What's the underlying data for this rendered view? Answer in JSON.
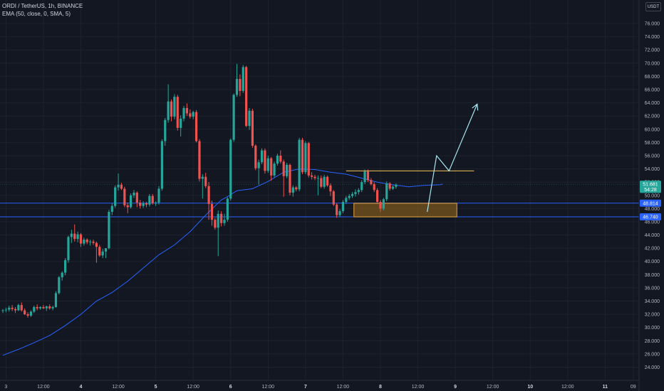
{
  "header": {
    "symbol_line": "ORDI / TetherUS, 1h, BINANCE",
    "indicator_line": "EMA (50, close, 0, SMA, 5)"
  },
  "currency_button": "USDT",
  "colors": {
    "background": "#131722",
    "up": "#26a69a",
    "down": "#ef5350",
    "ema": "#2962ff",
    "support_line": "#2962ff",
    "resistance_line": "#f0c65a",
    "zone_fill": "#9c6b1c",
    "zone_border": "#e8a33a",
    "projection": "#a8e6f0"
  },
  "chart_data": {
    "type": "candlestick",
    "title": "ORDI / TetherUS, 1h, BINANCE",
    "ylim": [
      22.5,
      78.0
    ],
    "y_ticks": [
      "76.000",
      "74.000",
      "72.000",
      "70.000",
      "68.000",
      "66.000",
      "64.000",
      "62.000",
      "60.000",
      "58.000",
      "56.000",
      "54.000",
      "52.000",
      "50.000",
      "48.000",
      "46.000",
      "44.000",
      "42.000",
      "40.000",
      "38.000",
      "36.000",
      "34.000",
      "32.000",
      "30.000",
      "28.000",
      "26.000",
      "24.000"
    ],
    "x_ticks": [
      {
        "label": "3",
        "bar": 1,
        "day": false
      },
      {
        "label": "12:00",
        "bar": 13,
        "day": false
      },
      {
        "label": "4",
        "bar": 25,
        "day": true
      },
      {
        "label": "12:00",
        "bar": 37,
        "day": false
      },
      {
        "label": "5",
        "bar": 49,
        "day": true
      },
      {
        "label": "12:00",
        "bar": 61,
        "day": false
      },
      {
        "label": "6",
        "bar": 73,
        "day": true
      },
      {
        "label": "12:00",
        "bar": 85,
        "day": false
      },
      {
        "label": "7",
        "bar": 97,
        "day": true
      },
      {
        "label": "12:00",
        "bar": 109,
        "day": false
      },
      {
        "label": "8",
        "bar": 121,
        "day": true
      },
      {
        "label": "12:00",
        "bar": 133,
        "day": false
      },
      {
        "label": "9",
        "bar": 145,
        "day": true
      },
      {
        "label": "12:00",
        "bar": 157,
        "day": false
      },
      {
        "label": "10",
        "bar": 169,
        "day": true
      },
      {
        "label": "12:00",
        "bar": 181,
        "day": false
      },
      {
        "label": "11",
        "bar": 193,
        "day": true
      },
      {
        "label": "09",
        "bar": 202,
        "day": false
      }
    ],
    "price_labels": [
      {
        "value": 51.681,
        "text": "51.681",
        "color": "#26a69a"
      },
      {
        "value": 50.9,
        "text": "54:28",
        "color": "#26a69a"
      },
      {
        "value": 48.814,
        "text": "48.814",
        "color": "#2962ff"
      },
      {
        "value": 46.74,
        "text": "46.740",
        "color": "#2962ff"
      }
    ],
    "horizontal_lines": [
      {
        "name": "support-upper",
        "value": 48.814
      },
      {
        "name": "support-lower",
        "value": 46.74
      }
    ],
    "resistance": {
      "value": 53.7,
      "x_from": 110,
      "x_to": 151
    },
    "zone": {
      "x_from": 112.5,
      "x_to": 145.5,
      "y_from": 46.74,
      "y_to": 48.8
    },
    "projection": [
      [
        136,
        47.5
      ],
      [
        139,
        56.0
      ],
      [
        143,
        53.7
      ],
      [
        152,
        63.8
      ]
    ],
    "ema": [
      [
        0,
        25.8
      ],
      [
        5,
        26.7
      ],
      [
        10,
        27.7
      ],
      [
        15,
        28.8
      ],
      [
        20,
        30.3
      ],
      [
        25,
        32.0
      ],
      [
        30,
        34.0
      ],
      [
        35,
        35.3
      ],
      [
        40,
        37.0
      ],
      [
        45,
        39.0
      ],
      [
        50,
        41.0
      ],
      [
        55,
        42.5
      ],
      [
        60,
        44.5
      ],
      [
        65,
        47.0
      ],
      [
        70,
        49.3
      ],
      [
        72,
        49.8
      ],
      [
        75,
        50.7
      ],
      [
        80,
        51.0
      ],
      [
        85,
        52.1
      ],
      [
        90,
        53.5
      ],
      [
        95,
        54.0
      ],
      [
        100,
        53.9
      ],
      [
        105,
        53.5
      ],
      [
        110,
        53.2
      ],
      [
        115,
        52.6
      ],
      [
        120,
        52.0
      ],
      [
        125,
        51.6
      ],
      [
        130,
        51.3
      ],
      [
        135,
        51.5
      ],
      [
        140,
        51.6
      ],
      [
        141,
        51.7
      ]
    ],
    "candles": [
      [
        32.5,
        32.8,
        32.2,
        32.6
      ],
      [
        32.6,
        33.0,
        32.3,
        32.7
      ],
      [
        32.7,
        33.3,
        32.4,
        33.0
      ],
      [
        33.0,
        33.4,
        32.5,
        32.8
      ],
      [
        32.8,
        33.1,
        32.2,
        32.6
      ],
      [
        32.6,
        33.6,
        32.5,
        33.4
      ],
      [
        33.4,
        33.8,
        32.4,
        32.6
      ],
      [
        32.6,
        32.9,
        31.9,
        32.0
      ],
      [
        32.0,
        32.3,
        31.5,
        31.8
      ],
      [
        31.8,
        32.6,
        31.6,
        32.4
      ],
      [
        32.4,
        33.3,
        32.2,
        33.1
      ],
      [
        33.1,
        33.5,
        32.6,
        32.9
      ],
      [
        32.9,
        33.2,
        32.7,
        33.1
      ],
      [
        33.1,
        33.4,
        32.8,
        32.9
      ],
      [
        32.9,
        33.3,
        32.5,
        33.2
      ],
      [
        33.2,
        33.5,
        32.7,
        32.9
      ],
      [
        32.9,
        33.3,
        32.6,
        33.1
      ],
      [
        33.1,
        35.5,
        33.0,
        35.2
      ],
      [
        35.2,
        37.8,
        35.0,
        37.6
      ],
      [
        37.6,
        38.5,
        37.1,
        38.3
      ],
      [
        38.3,
        40.5,
        37.9,
        40.2
      ],
      [
        40.2,
        43.9,
        39.8,
        43.7
      ],
      [
        43.7,
        44.8,
        42.8,
        44.2
      ],
      [
        44.2,
        45.6,
        43.0,
        43.4
      ],
      [
        43.4,
        44.5,
        42.9,
        44.1
      ],
      [
        44.1,
        44.3,
        42.2,
        42.7
      ],
      [
        42.7,
        43.6,
        42.4,
        43.3
      ],
      [
        43.3,
        43.5,
        42.6,
        42.9
      ],
      [
        42.9,
        43.3,
        42.4,
        43.0
      ],
      [
        43.0,
        43.3,
        42.5,
        42.8
      ],
      [
        42.8,
        43.0,
        39.8,
        42.2
      ],
      [
        42.2,
        42.5,
        40.7,
        40.9
      ],
      [
        40.9,
        41.9,
        40.5,
        41.5
      ],
      [
        41.5,
        41.8,
        40.5,
        42.0
      ],
      [
        42.0,
        47.8,
        41.8,
        47.5
      ],
      [
        47.5,
        48.8,
        47.0,
        48.4
      ],
      [
        48.4,
        51.5,
        48.1,
        51.2
      ],
      [
        51.2,
        53.3,
        50.7,
        51.6
      ],
      [
        51.6,
        51.9,
        50.8,
        51.0
      ],
      [
        51.0,
        51.3,
        48.2,
        48.5
      ],
      [
        48.5,
        48.9,
        47.3,
        48.2
      ],
      [
        48.2,
        50.3,
        48.0,
        50.0
      ],
      [
        50.0,
        50.8,
        49.6,
        50.4
      ],
      [
        50.4,
        50.6,
        48.2,
        48.9
      ],
      [
        48.9,
        49.3,
        48.0,
        48.4
      ],
      [
        48.4,
        49.1,
        48.1,
        48.8
      ],
      [
        48.8,
        49.0,
        48.2,
        48.6
      ],
      [
        48.6,
        50.2,
        48.3,
        49.9
      ],
      [
        49.9,
        50.2,
        48.6,
        48.8
      ],
      [
        48.8,
        49.1,
        48.4,
        48.9
      ],
      [
        48.9,
        51.4,
        48.6,
        51.0
      ],
      [
        51.0,
        58.5,
        50.7,
        58.2
      ],
      [
        58.2,
        61.7,
        57.5,
        61.4
      ],
      [
        61.4,
        66.8,
        61.0,
        64.2
      ],
      [
        64.2,
        64.5,
        61.2,
        61.9
      ],
      [
        61.9,
        65.3,
        61.5,
        64.9
      ],
      [
        64.9,
        65.2,
        59.8,
        60.2
      ],
      [
        60.2,
        62.1,
        58.9,
        61.6
      ],
      [
        61.6,
        63.5,
        61.2,
        63.2
      ],
      [
        63.2,
        63.9,
        62.0,
        62.4
      ],
      [
        62.4,
        63.0,
        61.6,
        61.9
      ],
      [
        61.9,
        62.8,
        61.5,
        62.6
      ],
      [
        62.6,
        62.9,
        58.0,
        58.2
      ],
      [
        58.2,
        58.5,
        52.1,
        52.5
      ],
      [
        52.5,
        53.2,
        49.5,
        52.8
      ],
      [
        52.8,
        53.4,
        51.1,
        51.4
      ],
      [
        51.4,
        52.0,
        46.3,
        48.7
      ],
      [
        48.7,
        49.2,
        45.4,
        46.3
      ],
      [
        46.3,
        46.6,
        44.8,
        45.1
      ],
      [
        45.1,
        47.7,
        40.8,
        47.2
      ],
      [
        47.2,
        47.6,
        45.3,
        45.8
      ],
      [
        45.8,
        47.2,
        45.4,
        46.3
      ],
      [
        46.3,
        49.7,
        46.0,
        49.5
      ],
      [
        49.5,
        58.6,
        49.2,
        58.4
      ],
      [
        58.4,
        65.4,
        58.1,
        65.2
      ],
      [
        65.2,
        69.9,
        64.9,
        67.6
      ],
      [
        67.6,
        68.3,
        65.0,
        65.8
      ],
      [
        65.8,
        69.7,
        65.5,
        69.4
      ],
      [
        69.4,
        69.6,
        60.3,
        60.5
      ],
      [
        60.5,
        63.2,
        59.9,
        62.8
      ],
      [
        62.8,
        63.1,
        57.2,
        57.5
      ],
      [
        57.5,
        57.7,
        53.8,
        54.1
      ],
      [
        54.1,
        55.4,
        51.6,
        55.0
      ],
      [
        55.0,
        57.1,
        54.7,
        56.8
      ],
      [
        56.8,
        57.1,
        53.3,
        53.7
      ],
      [
        53.7,
        56.0,
        53.4,
        55.6
      ],
      [
        55.6,
        55.8,
        52.2,
        53.0
      ],
      [
        53.0,
        55.1,
        52.7,
        54.8
      ],
      [
        54.8,
        56.3,
        54.5,
        56.0
      ],
      [
        56.0,
        56.8,
        54.8,
        55.1
      ],
      [
        55.1,
        55.4,
        49.8,
        52.9
      ],
      [
        52.9,
        54.9,
        52.6,
        54.6
      ],
      [
        54.6,
        54.8,
        50.0,
        50.4
      ],
      [
        50.4,
        51.5,
        49.8,
        51.2
      ],
      [
        51.2,
        51.4,
        50.6,
        50.9
      ],
      [
        50.9,
        58.7,
        50.6,
        58.4
      ],
      [
        58.4,
        58.7,
        53.2,
        53.5
      ],
      [
        53.5,
        58.2,
        53.2,
        57.9
      ],
      [
        57.9,
        58.1,
        52.7,
        53.0
      ],
      [
        53.0,
        53.5,
        52.4,
        52.8
      ],
      [
        52.8,
        53.1,
        52.3,
        52.6
      ],
      [
        52.6,
        53.0,
        50.0,
        52.6
      ],
      [
        52.6,
        53.0,
        51.1,
        51.3
      ],
      [
        51.3,
        53.1,
        51.0,
        52.8
      ],
      [
        52.8,
        53.0,
        51.3,
        51.5
      ],
      [
        51.5,
        51.8,
        49.9,
        50.6
      ],
      [
        50.6,
        50.8,
        48.4,
        48.6
      ],
      [
        48.6,
        48.8,
        46.6,
        47.0
      ],
      [
        47.0,
        47.9,
        46.7,
        47.6
      ],
      [
        47.6,
        49.3,
        47.3,
        49.0
      ],
      [
        49.0,
        49.9,
        48.7,
        49.6
      ],
      [
        49.6,
        50.2,
        49.3,
        49.9
      ],
      [
        49.9,
        50.5,
        49.6,
        50.2
      ],
      [
        50.2,
        50.9,
        49.8,
        50.5
      ],
      [
        50.5,
        51.1,
        50.1,
        50.8
      ],
      [
        50.8,
        52.3,
        50.5,
        52.0
      ],
      [
        52.0,
        53.9,
        51.7,
        53.6
      ],
      [
        53.6,
        53.9,
        52.0,
        52.3
      ],
      [
        52.3,
        52.6,
        51.5,
        51.7
      ],
      [
        51.7,
        52.0,
        50.5,
        50.8
      ],
      [
        50.8,
        51.1,
        48.7,
        49.0
      ],
      [
        49.0,
        49.3,
        47.5,
        48.0
      ],
      [
        48.0,
        49.6,
        47.7,
        49.4
      ],
      [
        49.4,
        52.1,
        49.1,
        51.8
      ],
      [
        51.8,
        52.0,
        50.7,
        51.0
      ],
      [
        51.0,
        51.5,
        50.8,
        51.3
      ],
      [
        51.3,
        51.8,
        51.0,
        51.6
      ]
    ],
    "candle_start_bar": 0,
    "candle_start_bar_note": ""
  }
}
